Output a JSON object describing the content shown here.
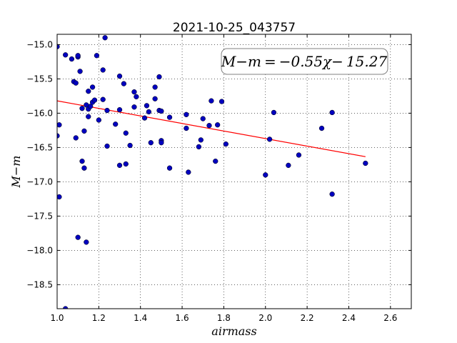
{
  "chart_data": {
    "type": "scatter",
    "title": "2021-10-25_043757",
    "xlabel": "airmass",
    "ylabel": "M−m",
    "xlim": [
      1.0,
      2.7
    ],
    "ylim": [
      -18.85,
      -14.85
    ],
    "x_ticks": [
      1.0,
      1.2,
      1.4,
      1.6,
      1.8,
      2.0,
      2.2,
      2.4,
      2.6
    ],
    "x_tick_labels": [
      "1.0",
      "1.2",
      "1.4",
      "1.6",
      "1.8",
      "2.0",
      "2.2",
      "2.4",
      "2.6"
    ],
    "y_ticks": [
      -15.0,
      -15.5,
      -16.0,
      -16.5,
      -17.0,
      -17.5,
      -18.0,
      -18.5
    ],
    "y_tick_labels": [
      "−15.0",
      "−15.5",
      "−16.0",
      "−16.5",
      "−17.0",
      "−17.5",
      "−18.0",
      "−18.5"
    ],
    "grid": true,
    "annotation": "M−m = −0.55χ− 15.27",
    "fit": {
      "slope": -0.55,
      "intercept": -15.27,
      "x_range": [
        1.0,
        2.48
      ],
      "color": "#ff0000"
    },
    "marker_color": "#0000bf",
    "points": [
      [
        1.0,
        -15.03
      ],
      [
        1.0,
        -16.33
      ],
      [
        1.01,
        -16.17
      ],
      [
        1.01,
        -17.22
      ],
      [
        1.04,
        -15.15
      ],
      [
        1.04,
        -18.85
      ],
      [
        1.07,
        -15.21
      ],
      [
        1.08,
        -15.54
      ],
      [
        1.09,
        -15.56
      ],
      [
        1.09,
        -16.36
      ],
      [
        1.1,
        -15.18
      ],
      [
        1.1,
        -15.16
      ],
      [
        1.1,
        -17.81
      ],
      [
        1.11,
        -15.39
      ],
      [
        1.12,
        -15.93
      ],
      [
        1.12,
        -16.7
      ],
      [
        1.13,
        -16.8
      ],
      [
        1.13,
        -16.26
      ],
      [
        1.14,
        -15.88
      ],
      [
        1.14,
        -17.88
      ],
      [
        1.15,
        -15.68
      ],
      [
        1.15,
        -15.94
      ],
      [
        1.15,
        -16.05
      ],
      [
        1.16,
        -15.9
      ],
      [
        1.17,
        -15.62
      ],
      [
        1.17,
        -15.84
      ],
      [
        1.18,
        -15.81
      ],
      [
        1.19,
        -15.16
      ],
      [
        1.2,
        -16.1
      ],
      [
        1.22,
        -15.8
      ],
      [
        1.22,
        -15.37
      ],
      [
        1.23,
        -14.9
      ],
      [
        1.24,
        -15.96
      ],
      [
        1.24,
        -16.48
      ],
      [
        1.28,
        -16.16
      ],
      [
        1.3,
        -16.76
      ],
      [
        1.3,
        -15.46
      ],
      [
        1.3,
        -15.95
      ],
      [
        1.32,
        -15.57
      ],
      [
        1.33,
        -16.29
      ],
      [
        1.33,
        -16.74
      ],
      [
        1.35,
        -16.47
      ],
      [
        1.37,
        -15.69
      ],
      [
        1.37,
        -15.91
      ],
      [
        1.38,
        -15.76
      ],
      [
        1.42,
        -16.07
      ],
      [
        1.43,
        -15.89
      ],
      [
        1.44,
        -15.98
      ],
      [
        1.45,
        -16.43
      ],
      [
        1.47,
        -15.62
      ],
      [
        1.47,
        -15.79
      ],
      [
        1.49,
        -15.96
      ],
      [
        1.49,
        -15.47
      ],
      [
        1.5,
        -15.97
      ],
      [
        1.5,
        -16.4
      ],
      [
        1.5,
        -16.43
      ],
      [
        1.54,
        -16.06
      ],
      [
        1.54,
        -16.8
      ],
      [
        1.62,
        -16.02
      ],
      [
        1.62,
        -16.22
      ],
      [
        1.63,
        -16.86
      ],
      [
        1.68,
        -16.49
      ],
      [
        1.69,
        -16.39
      ],
      [
        1.7,
        -16.08
      ],
      [
        1.73,
        -16.18
      ],
      [
        1.74,
        -15.82
      ],
      [
        1.76,
        -16.7
      ],
      [
        1.77,
        -16.17
      ],
      [
        1.79,
        -15.83
      ],
      [
        1.81,
        -16.45
      ],
      [
        2.0,
        -16.9
      ],
      [
        2.02,
        -16.38
      ],
      [
        2.04,
        -15.99
      ],
      [
        2.11,
        -16.76
      ],
      [
        2.16,
        -16.61
      ],
      [
        2.27,
        -16.22
      ],
      [
        2.32,
        -15.99
      ],
      [
        2.32,
        -17.18
      ],
      [
        2.48,
        -16.73
      ]
    ]
  }
}
